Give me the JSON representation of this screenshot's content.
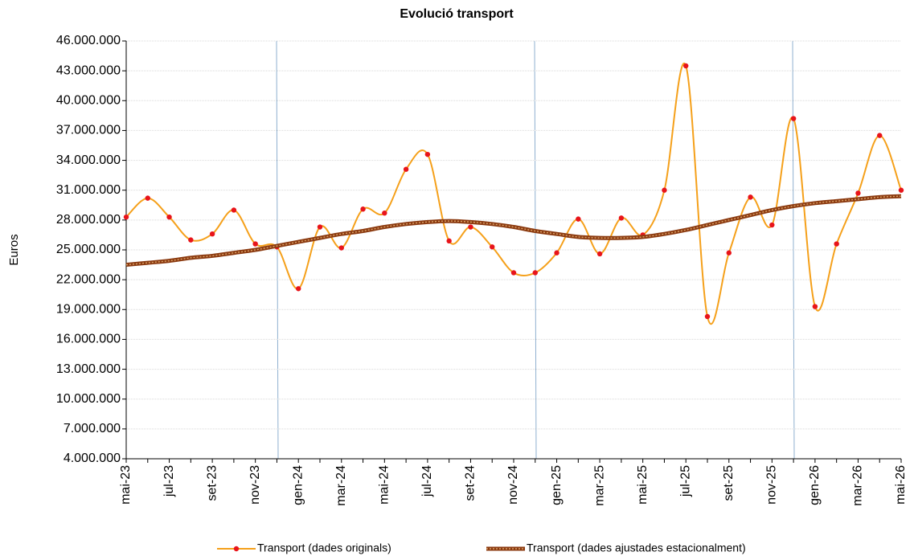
{
  "chart_data": {
    "type": "line",
    "title": "Evolució transport",
    "y_label": "Euros",
    "categories": [
      "mai-23",
      null,
      "jul-23",
      null,
      "set-23",
      null,
      "nov-23",
      null,
      "gen-24",
      null,
      "mar-24",
      null,
      "mai-24",
      null,
      "jul-24",
      null,
      "set-24",
      null,
      "nov-24",
      null,
      "gen-25",
      null,
      "mar-25",
      null,
      "mai-25",
      null,
      "jul-25",
      null,
      "set-25",
      null,
      "nov-25",
      null,
      "gen-26",
      null,
      "mar-26",
      null,
      "mai-26"
    ],
    "series": [
      {
        "name": "Transport (dades originals)",
        "color": "#f5a01a",
        "marker_color": "#e8141a",
        "values": [
          28300000,
          30200000,
          28300000,
          26000000,
          26600000,
          29000000,
          25600000,
          25300000,
          21100000,
          27300000,
          25200000,
          29100000,
          28700000,
          33100000,
          34600000,
          25900000,
          27300000,
          25300000,
          22700000,
          22700000,
          24700000,
          28100000,
          24600000,
          28200000,
          26500000,
          31000000,
          43500000,
          18300000,
          24700000,
          30300000,
          27500000,
          38200000,
          19300000,
          25600000,
          30700000,
          36500000,
          31000000
        ]
      },
      {
        "name": "Transport (dades ajustades estacionalment)",
        "color": "#8b3a10",
        "dash_color": "#d9a066",
        "values": [
          23500000,
          23700000,
          23900000,
          24200000,
          24400000,
          24700000,
          25000000,
          25400000,
          25800000,
          26200000,
          26600000,
          26900000,
          27300000,
          27600000,
          27800000,
          27900000,
          27800000,
          27600000,
          27300000,
          26900000,
          26600000,
          26300000,
          26200000,
          26200000,
          26300000,
          26600000,
          27000000,
          27500000,
          28000000,
          28500000,
          29000000,
          29400000,
          29700000,
          29900000,
          30100000,
          30300000,
          30400000
        ]
      }
    ],
    "ylim": [
      4000000,
      46000000
    ],
    "yticks": [
      {
        "value": 4000000,
        "label": "4.000.000"
      },
      {
        "value": 7000000,
        "label": "7.000.000"
      },
      {
        "value": 10000000,
        "label": "10.000.000"
      },
      {
        "value": 13000000,
        "label": "13.000.000"
      },
      {
        "value": 16000000,
        "label": "16.000.000"
      },
      {
        "value": 19000000,
        "label": "19.000.000"
      },
      {
        "value": 22000000,
        "label": "22.000.000"
      },
      {
        "value": 25000000,
        "label": "25.000.000"
      },
      {
        "value": 28000000,
        "label": "28.000.000"
      },
      {
        "value": 31000000,
        "label": "31.000.000"
      },
      {
        "value": 34000000,
        "label": "34.000.000"
      },
      {
        "value": 37000000,
        "label": "37.000.000"
      },
      {
        "value": 40000000,
        "label": "40.000.000"
      },
      {
        "value": 43000000,
        "label": "43.000.000"
      },
      {
        "value": 46000000,
        "label": "46.000.000"
      }
    ],
    "grid": true,
    "legend": "bottom"
  }
}
